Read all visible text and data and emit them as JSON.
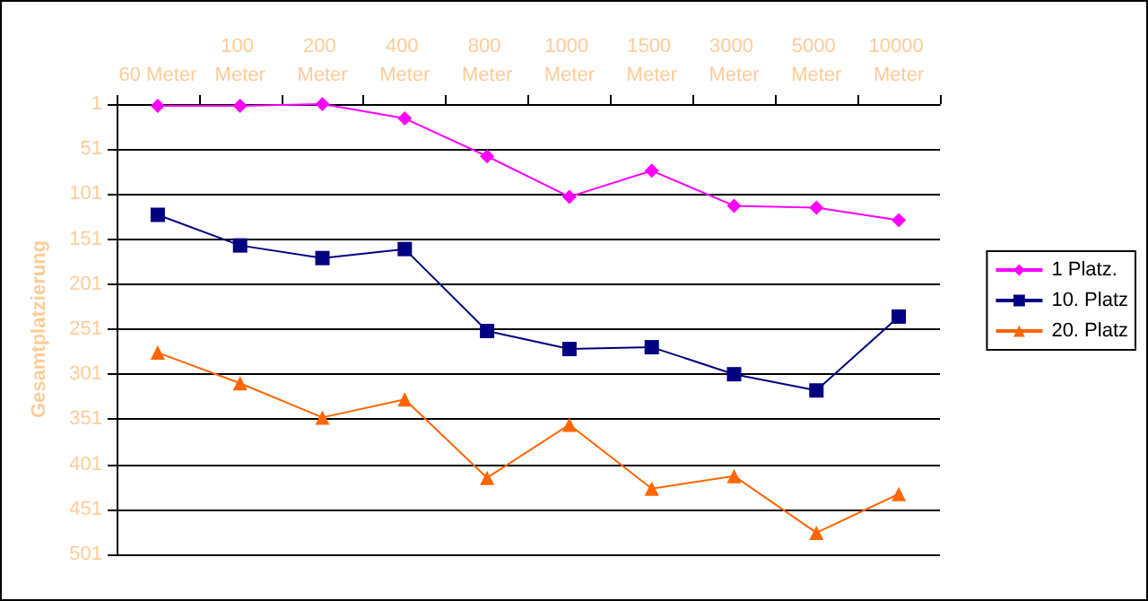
{
  "chart_data": {
    "type": "line",
    "ylabel": "Gesamtplatzierung",
    "categories": [
      "60 Meter",
      "100 Meter",
      "200 Meter",
      "400 Meter",
      "800 Meter",
      "1000 Meter",
      "1500 Meter",
      "3000 Meter",
      "5000 Meter",
      "10000 Meter"
    ],
    "series": [
      {
        "name": "1 Platz.",
        "color": "#ff00ff",
        "marker": "diamond",
        "values": [
          3,
          3,
          1,
          17,
          59,
          104,
          75,
          114,
          116,
          130
        ]
      },
      {
        "name": "10. Platz",
        "color": "#000080",
        "marker": "square",
        "values": [
          124,
          158,
          172,
          162,
          253,
          273,
          271,
          301,
          319,
          237
        ]
      },
      {
        "name": "20. Platz",
        "color": "#ff6600",
        "marker": "triangle",
        "values": [
          277,
          311,
          349,
          329,
          416,
          357,
          428,
          414,
          477,
          434
        ]
      }
    ],
    "ylim": [
      501,
      1
    ],
    "yticks": [
      1,
      51,
      101,
      151,
      201,
      251,
      301,
      351,
      401,
      451,
      501
    ],
    "grid": "y",
    "legend": "right"
  }
}
